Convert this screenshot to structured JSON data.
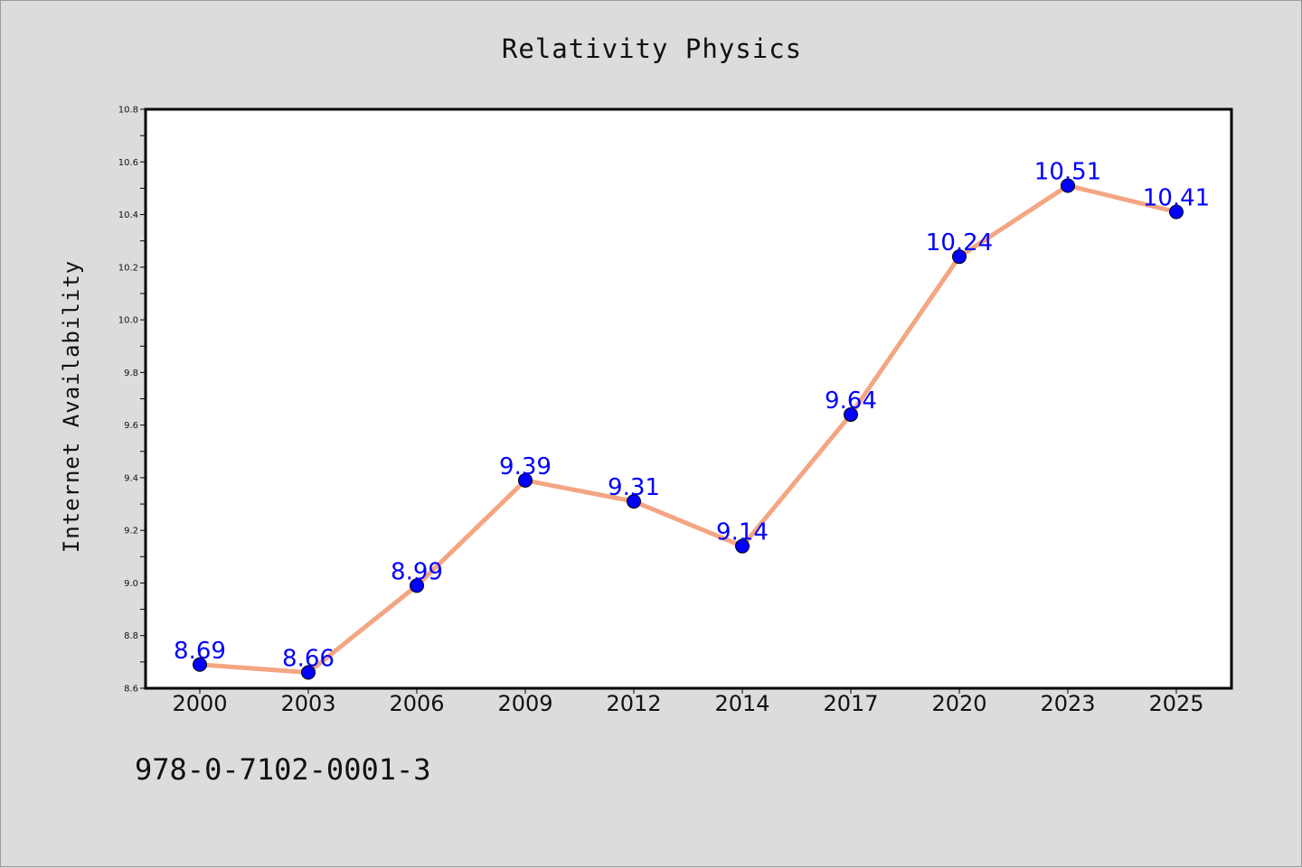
{
  "chart_data": {
    "type": "line",
    "title": "Relativity Physics",
    "xlabel": "",
    "ylabel": "Internet Availability",
    "categories": [
      "2000",
      "2003",
      "2006",
      "2009",
      "2012",
      "2014",
      "2017",
      "2020",
      "2023",
      "2025"
    ],
    "series": [
      {
        "values": [
          8.69,
          8.66,
          8.99,
          9.39,
          9.31,
          9.14,
          9.64,
          10.24,
          10.51,
          10.41
        ],
        "labels": [
          "8.69",
          "8.66",
          "8.99",
          "9.39",
          "9.31",
          "9.14",
          "9.64",
          "10.24",
          "10.51",
          "10.41"
        ]
      }
    ],
    "ylim": [
      8.6,
      10.8
    ],
    "yticks": [
      "8.6",
      "8.8",
      "9.0",
      "9.2",
      "9.4",
      "9.6",
      "9.8",
      "10.0",
      "10.2",
      "10.4",
      "10.6",
      "10.8"
    ],
    "grid": false,
    "colors": {
      "line": "#f4a582",
      "marker": "#0000ff",
      "label": "#0000ff",
      "plot_bg": "#ffffff",
      "page_bg": "#dcdcdc"
    }
  },
  "footer": {
    "identifier": "978-0-7102-0001-3"
  }
}
